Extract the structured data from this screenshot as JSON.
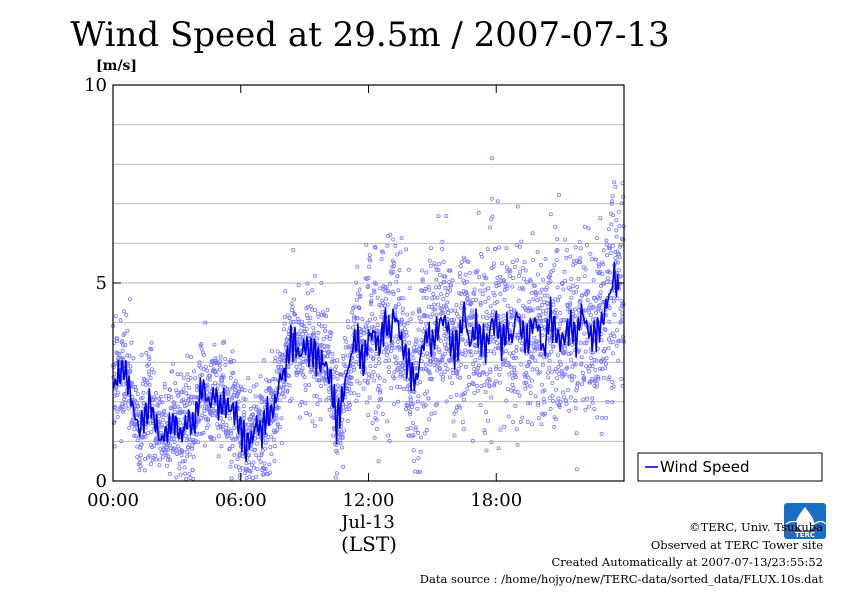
{
  "chart_data": {
    "type": "line",
    "title": "Wind Speed at 29.5m / 2007-07-13",
    "unit_label": "[m/s]",
    "date_label": "Jul-13",
    "timezone_label": "(LST)",
    "ylim": [
      0,
      10
    ],
    "y_ticks": [
      {
        "value": 0,
        "label": "0"
      },
      {
        "value": 5,
        "label": "5"
      },
      {
        "value": 10,
        "label": "10"
      }
    ],
    "y_gridlines": [
      1,
      2,
      3,
      4,
      5,
      6,
      7,
      8,
      9
    ],
    "x_ticks": [
      {
        "hour": 0,
        "label": "00:00"
      },
      {
        "hour": 6,
        "label": "06:00"
      },
      {
        "hour": 12,
        "label": "12:00"
      },
      {
        "hour": 18,
        "label": "18:00"
      }
    ],
    "xlim_hours": [
      0,
      24
    ],
    "legend": {
      "position": "bottom-right-outside",
      "label": "Wind Speed"
    },
    "series": [
      {
        "name": "Wind Speed",
        "color": "#0000ee",
        "scatter_color": "#7a7aff",
        "mean_hours": [
          0.0,
          0.25,
          0.5,
          0.75,
          1.0,
          1.25,
          1.5,
          1.75,
          2.0,
          2.25,
          2.5,
          2.75,
          3.0,
          3.25,
          3.5,
          3.75,
          4.0,
          4.25,
          4.5,
          4.75,
          5.0,
          5.25,
          5.5,
          5.75,
          6.0,
          6.25,
          6.5,
          6.75,
          7.0,
          7.25,
          7.5,
          7.75,
          8.0,
          8.25,
          8.5,
          8.75,
          9.0,
          9.25,
          9.5,
          9.75,
          10.0,
          10.25,
          10.5,
          10.75,
          11.0,
          11.25,
          11.5,
          11.75,
          12.0,
          12.25,
          12.5,
          12.75,
          13.0,
          13.25,
          13.5,
          13.75,
          14.0,
          14.25,
          14.5,
          14.75,
          15.0,
          15.25,
          15.5,
          15.75,
          16.0,
          16.25,
          16.5,
          16.75,
          17.0,
          17.25,
          17.5,
          17.75,
          18.0,
          18.25,
          18.5,
          18.75,
          19.0,
          19.25,
          19.5,
          19.75,
          20.0,
          20.25,
          20.5,
          20.75,
          21.0,
          21.25,
          21.5,
          21.75,
          22.0,
          22.25,
          22.5,
          22.75,
          23.0,
          23.25,
          23.5,
          23.75
        ],
        "mean_values": [
          2.3,
          2.7,
          2.9,
          2.5,
          1.6,
          1.3,
          1.7,
          2.0,
          1.4,
          1.1,
          1.3,
          1.5,
          1.4,
          1.2,
          1.6,
          1.3,
          2.0,
          2.3,
          1.9,
          2.2,
          1.8,
          2.0,
          1.9,
          1.7,
          1.3,
          0.9,
          1.1,
          1.5,
          1.2,
          1.6,
          1.8,
          2.3,
          2.7,
          3.3,
          3.6,
          3.2,
          3.4,
          3.3,
          3.2,
          3.0,
          2.9,
          2.5,
          1.5,
          2.0,
          2.7,
          3.3,
          3.6,
          3.0,
          3.6,
          3.8,
          3.3,
          4.1,
          3.7,
          4.2,
          3.6,
          3.1,
          2.8,
          2.5,
          3.3,
          3.7,
          3.5,
          3.8,
          4.1,
          3.8,
          3.2,
          3.6,
          4.3,
          3.4,
          3.9,
          3.7,
          3.4,
          3.9,
          4.0,
          3.5,
          3.9,
          3.6,
          4.2,
          3.7,
          3.5,
          4.1,
          3.8,
          3.2,
          4.2,
          3.8,
          3.5,
          3.7,
          4.0,
          3.6,
          4.3,
          3.9,
          3.6,
          3.8,
          4.1,
          4.5,
          5.2,
          4.8
        ],
        "scatter_spread": [
          0.8,
          0.8,
          0.8,
          0.8,
          0.8,
          0.8,
          0.8,
          0.8,
          0.8,
          0.8,
          0.8,
          0.8,
          0.8,
          0.8,
          0.8,
          0.8,
          0.8,
          0.8,
          0.8,
          0.8,
          0.8,
          0.8,
          0.8,
          0.8,
          0.8,
          0.8,
          0.8,
          0.8,
          0.8,
          0.8,
          0.8,
          0.8,
          0.8,
          0.8,
          0.8,
          0.8,
          0.8,
          0.8,
          0.8,
          0.8,
          0.8,
          0.8,
          0.8,
          0.8,
          0.8,
          0.8,
          0.8,
          0.8,
          1.3,
          1.3,
          1.3,
          1.3,
          1.3,
          1.3,
          1.3,
          1.3,
          1.3,
          1.3,
          1.3,
          1.3,
          1.3,
          1.3,
          1.3,
          1.3,
          1.3,
          1.3,
          1.3,
          1.3,
          1.3,
          1.3,
          1.3,
          1.3,
          1.3,
          1.3,
          1.3,
          1.3,
          1.3,
          1.3,
          1.3,
          1.3,
          1.3,
          1.3,
          1.3,
          1.3,
          1.3,
          1.3,
          1.3,
          1.3,
          1.3,
          1.3,
          1.3,
          1.3,
          1.3,
          1.6,
          1.6,
          1.6
        ]
      }
    ]
  },
  "footer": {
    "copyright": "©TERC, Univ. Tsukuba",
    "observed": "Observed at TERC Tower site",
    "created": "Created Automatically at 2007-07-13/23:55:52",
    "source": "Data source : /home/hojyo/new/TERC-data/sorted_data/FLUX.10s.dat"
  },
  "logo": {
    "text": "TERC",
    "color": "#1a6fc4"
  }
}
